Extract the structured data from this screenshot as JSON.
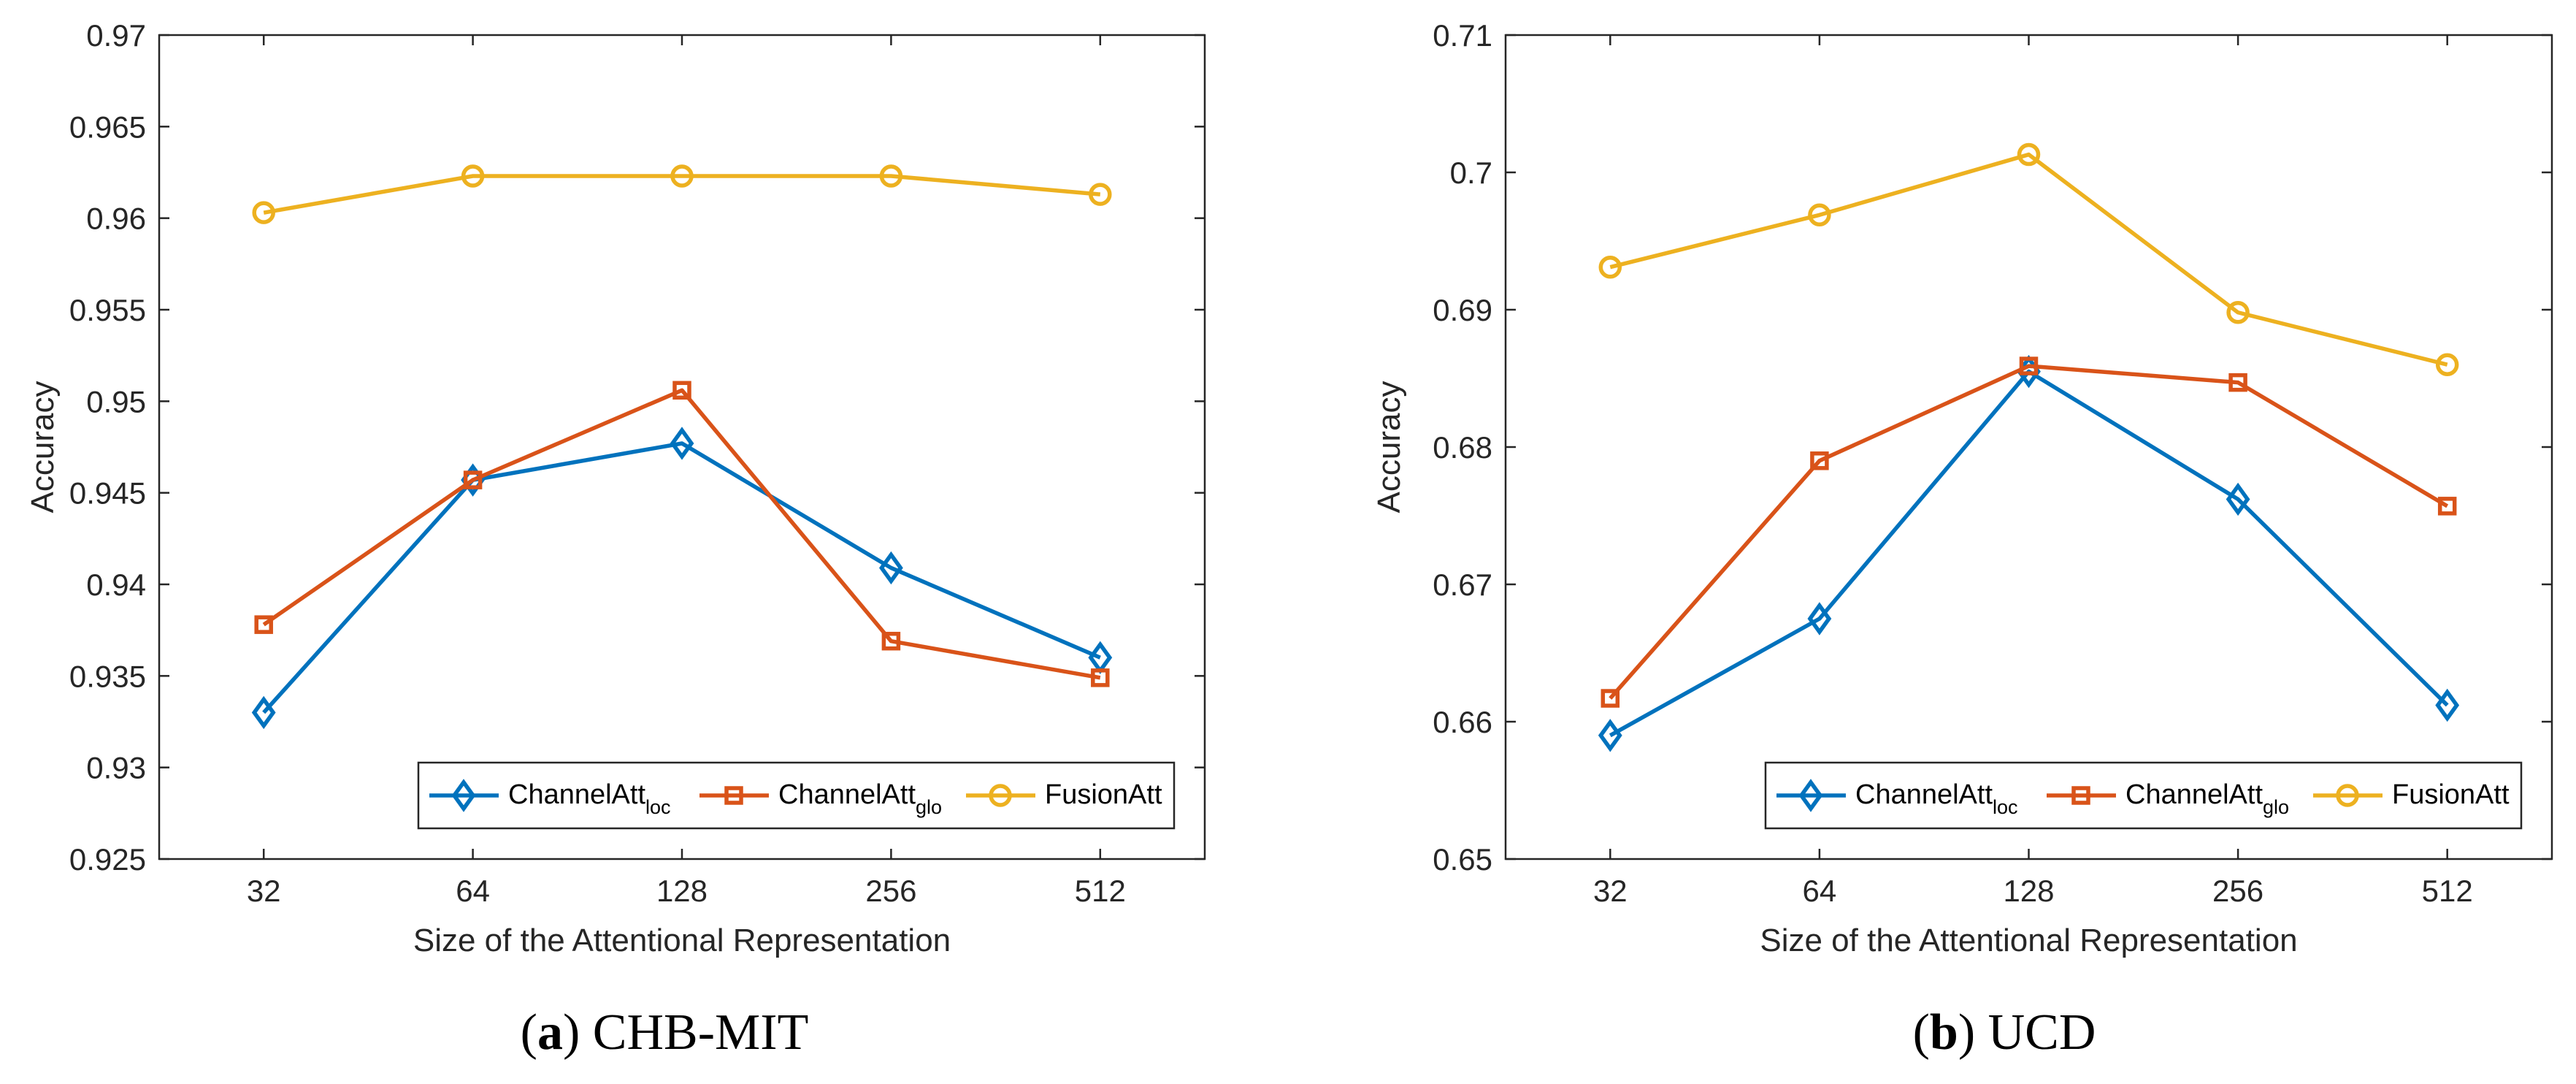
{
  "colors": {
    "loc": "#0072BD",
    "glo": "#D95319",
    "fusion": "#EDB120",
    "axis": "#262626"
  },
  "chart_data": [
    {
      "type": "line",
      "panel": "a",
      "caption": {
        "label": "a",
        "text": "CHB-MIT"
      },
      "xlabel": "Size of the Attentional Representation",
      "ylabel": "Accuracy",
      "categories": [
        "32",
        "64",
        "128",
        "256",
        "512"
      ],
      "ylim": [
        0.925,
        0.97
      ],
      "yticks": [
        0.925,
        0.93,
        0.935,
        0.94,
        0.945,
        0.95,
        0.955,
        0.96,
        0.965,
        0.97
      ],
      "ytick_labels": [
        "0.925",
        "0.93",
        "0.935",
        "0.94",
        "0.945",
        "0.95",
        "0.955",
        "0.96",
        "0.965",
        "0.97"
      ],
      "legend_position": "bottom-right",
      "series": [
        {
          "key": "loc",
          "name_base": "ChannelAtt",
          "name_sub": "loc",
          "marker": "diamond",
          "values": [
            0.933,
            0.9457,
            0.9477,
            0.9409,
            0.936
          ]
        },
        {
          "key": "glo",
          "name_base": "ChannelAtt",
          "name_sub": "glo",
          "marker": "square",
          "values": [
            0.9378,
            0.9457,
            0.9506,
            0.9369,
            0.9349
          ]
        },
        {
          "key": "fusion",
          "name_base": "FusionAtt",
          "name_sub": "",
          "marker": "circle",
          "values": [
            0.9603,
            0.9623,
            0.9623,
            0.9623,
            0.9613
          ]
        }
      ]
    },
    {
      "type": "line",
      "panel": "b",
      "caption": {
        "label": "b",
        "text": "UCD"
      },
      "xlabel": "Size of the Attentional Representation",
      "ylabel": "Accuracy",
      "categories": [
        "32",
        "64",
        "128",
        "256",
        "512"
      ],
      "ylim": [
        0.65,
        0.71
      ],
      "yticks": [
        0.65,
        0.66,
        0.67,
        0.68,
        0.69,
        0.7,
        0.71
      ],
      "ytick_labels": [
        "0.65",
        "0.66",
        "0.67",
        "0.68",
        "0.69",
        "0.7",
        "0.71"
      ],
      "legend_position": "bottom-right",
      "series": [
        {
          "key": "loc",
          "name_base": "ChannelAtt",
          "name_sub": "loc",
          "marker": "diamond",
          "values": [
            0.659,
            0.6675,
            0.6855,
            0.6762,
            0.6612
          ]
        },
        {
          "key": "glo",
          "name_base": "ChannelAtt",
          "name_sub": "glo",
          "marker": "square",
          "values": [
            0.6617,
            0.679,
            0.6859,
            0.6847,
            0.6757
          ]
        },
        {
          "key": "fusion",
          "name_base": "FusionAtt",
          "name_sub": "",
          "marker": "circle",
          "values": [
            0.6931,
            0.6969,
            0.7013,
            0.6898,
            0.686
          ]
        }
      ]
    }
  ]
}
